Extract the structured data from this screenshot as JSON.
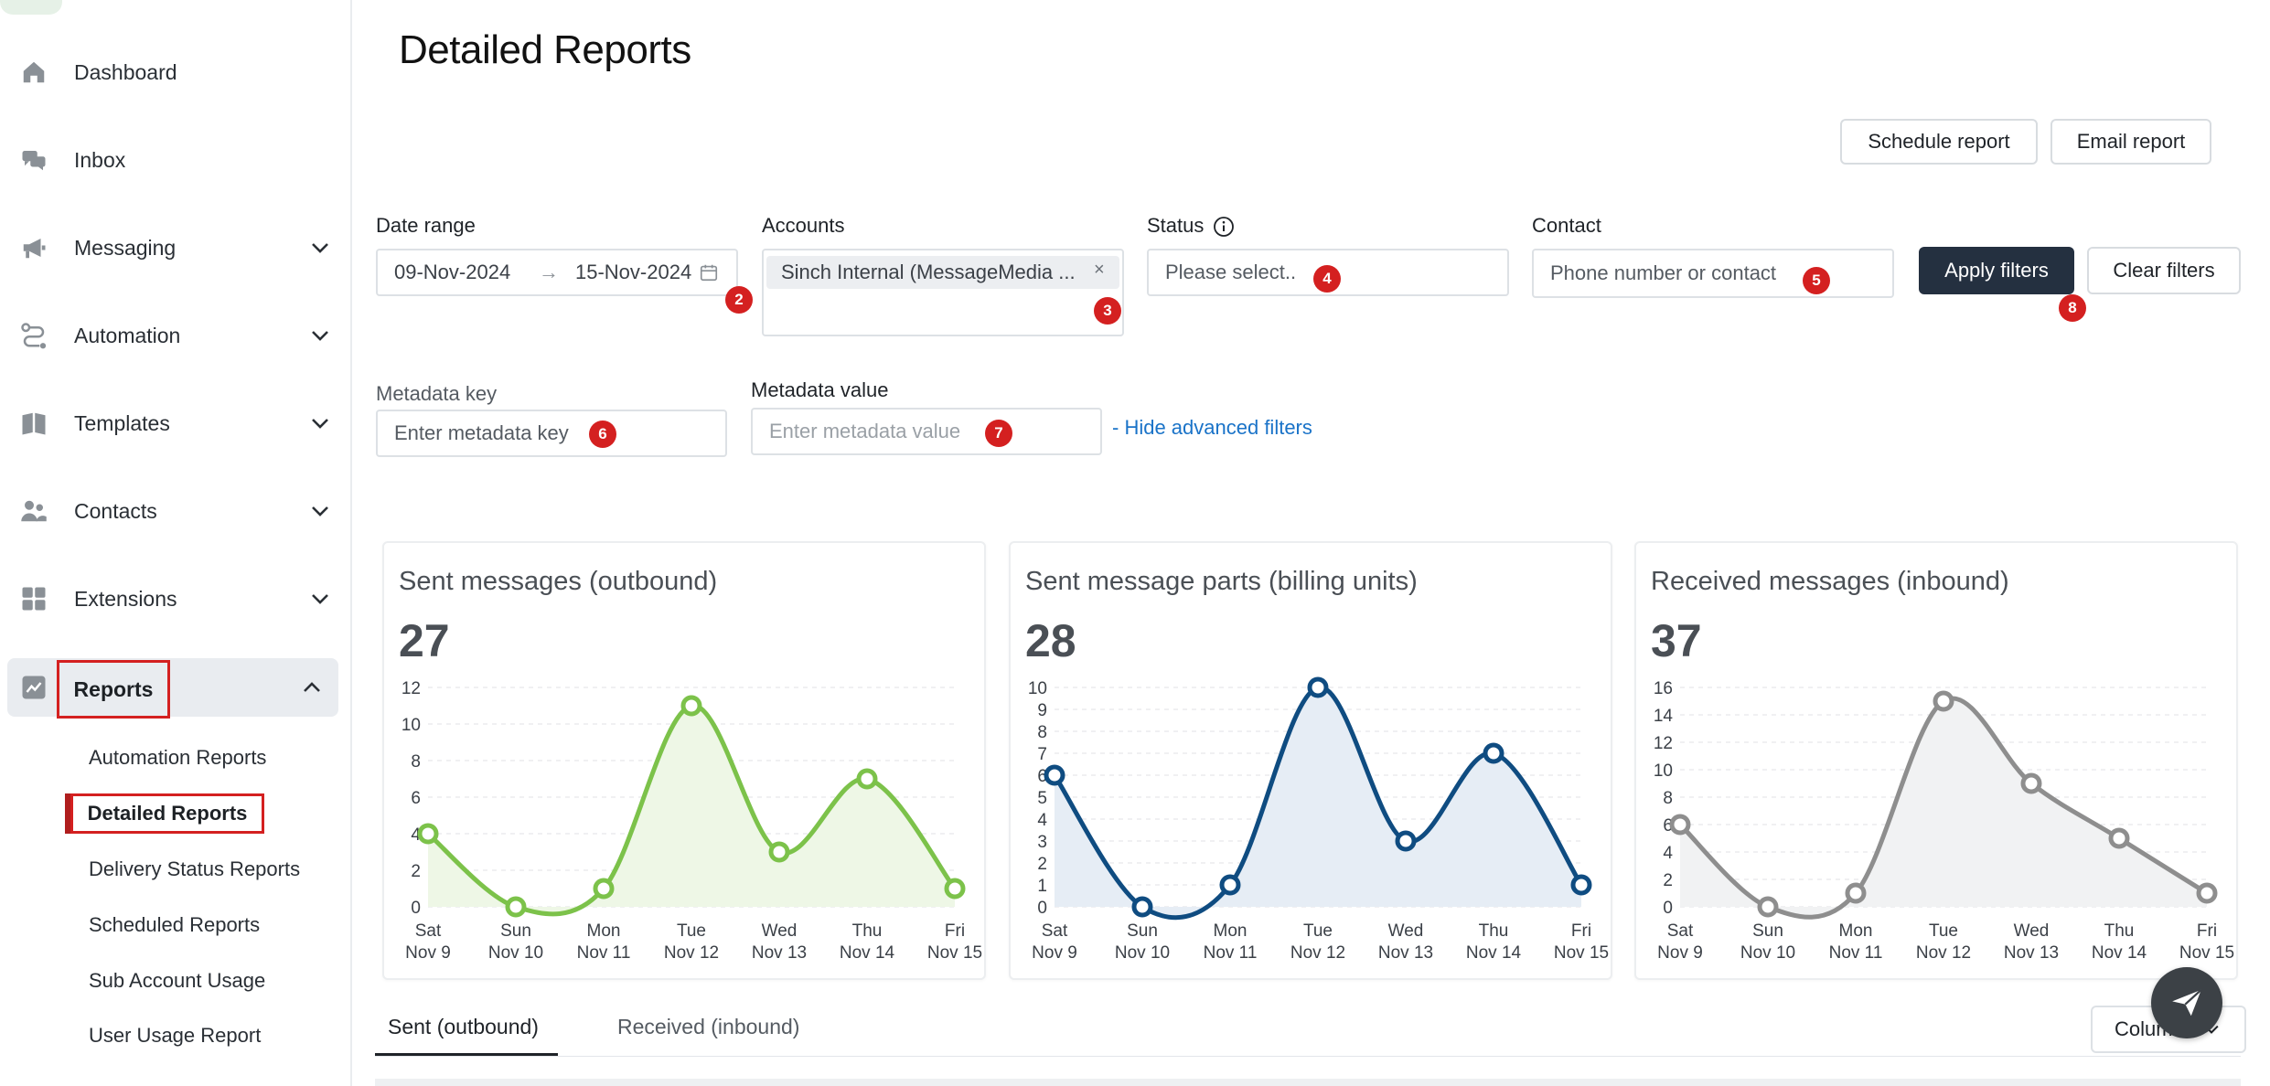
{
  "sidebar": {
    "items": [
      {
        "label": "Dashboard",
        "icon": "home-icon"
      },
      {
        "label": "Inbox",
        "icon": "chat-bubbles-icon"
      },
      {
        "label": "Messaging",
        "icon": "megaphone-icon"
      },
      {
        "label": "Automation",
        "icon": "route-icon"
      },
      {
        "label": "Templates",
        "icon": "book-icon"
      },
      {
        "label": "Contacts",
        "icon": "users-icon"
      },
      {
        "label": "Extensions",
        "icon": "grid-icon"
      },
      {
        "label": "Reports",
        "icon": "chart-icon"
      }
    ],
    "sub_items": [
      "Automation Reports",
      "Detailed Reports",
      "Delivery Status Reports",
      "Scheduled Reports",
      "Sub Account Usage",
      "User Usage Report"
    ]
  },
  "page": {
    "title": "Detailed Reports"
  },
  "actions": {
    "schedule": "Schedule report",
    "email": "Email report"
  },
  "filters": {
    "date_range_label": "Date range",
    "date_from": "09-Nov-2024",
    "date_arrow": "→",
    "date_to": "15-Nov-2024",
    "accounts_label": "Accounts",
    "account_chip": "Sinch Internal (MessageMedia ...",
    "chip_close": "×",
    "status_label": "Status",
    "status_placeholder": "Please select..",
    "contact_label": "Contact",
    "contact_placeholder": "Phone number or contact",
    "apply": "Apply filters",
    "clear": "Clear filters",
    "metadata_key_label": "Metadata key",
    "metadata_key_placeholder": "Enter metadata key",
    "metadata_value_label": "Metadata value",
    "metadata_value_placeholder": "Enter metadata value",
    "hide_advanced": "- Hide advanced filters"
  },
  "badges": [
    "2",
    "3",
    "4",
    "5",
    "6",
    "7",
    "8"
  ],
  "cards": [
    {
      "title": "Sent messages (outbound)",
      "value": "27"
    },
    {
      "title": "Sent message parts (billing units)",
      "value": "28"
    },
    {
      "title": "Received messages (inbound)",
      "value": "37"
    }
  ],
  "chart_data": [
    {
      "type": "line",
      "title": "Sent messages (outbound)",
      "categories": [
        "Sat Nov 9",
        "Sun Nov 10",
        "Mon Nov 11",
        "Tue Nov 12",
        "Wed Nov 13",
        "Thu Nov 14",
        "Fri Nov 15"
      ],
      "x_line1": [
        "Sat",
        "Sun",
        "Mon",
        "Tue",
        "Wed",
        "Thu",
        "Fri"
      ],
      "x_line2": [
        "Nov 9",
        "Nov 10",
        "Nov 11",
        "Nov 12",
        "Nov 13",
        "Nov 14",
        "Nov 15"
      ],
      "values": [
        4,
        0,
        1,
        11,
        3,
        7,
        1
      ],
      "ylim": [
        0,
        12
      ],
      "yticks": [
        0,
        2,
        4,
        6,
        8,
        10,
        12
      ],
      "color": "#7cc24a",
      "fill": "#eef7e6"
    },
    {
      "type": "line",
      "title": "Sent message parts (billing units)",
      "categories": [
        "Sat Nov 9",
        "Sun Nov 10",
        "Mon Nov 11",
        "Tue Nov 12",
        "Wed Nov 13",
        "Thu Nov 14",
        "Fri Nov 15"
      ],
      "x_line1": [
        "Sat",
        "Sun",
        "Mon",
        "Tue",
        "Wed",
        "Thu",
        "Fri"
      ],
      "x_line2": [
        "Nov 9",
        "Nov 10",
        "Nov 11",
        "Nov 12",
        "Nov 13",
        "Nov 14",
        "Nov 15"
      ],
      "values": [
        6,
        0,
        1,
        10,
        3,
        7,
        1
      ],
      "ylim": [
        0,
        10
      ],
      "yticks": [
        0,
        1,
        2,
        3,
        4,
        5,
        6,
        7,
        8,
        9,
        10
      ],
      "color": "#0f4c81",
      "fill": "#e6edf5"
    },
    {
      "type": "line",
      "title": "Received messages (inbound)",
      "categories": [
        "Sat Nov 9",
        "Sun Nov 10",
        "Mon Nov 11",
        "Tue Nov 12",
        "Wed Nov 13",
        "Thu Nov 14",
        "Fri Nov 15"
      ],
      "x_line1": [
        "Sat",
        "Sun",
        "Mon",
        "Tue",
        "Wed",
        "Thu",
        "Fri"
      ],
      "x_line2": [
        "Nov 9",
        "Nov 10",
        "Nov 11",
        "Nov 12",
        "Nov 13",
        "Nov 14",
        "Nov 15"
      ],
      "values": [
        6,
        0,
        1,
        15,
        9,
        5,
        1
      ],
      "ylim": [
        0,
        16
      ],
      "yticks": [
        0,
        2,
        4,
        6,
        8,
        10,
        12,
        14,
        16
      ],
      "color": "#8e8e8e",
      "fill": "#f1f2f3"
    }
  ],
  "tabs": [
    "Sent (outbound)",
    "Received (inbound)"
  ],
  "columns_button": "Columns"
}
